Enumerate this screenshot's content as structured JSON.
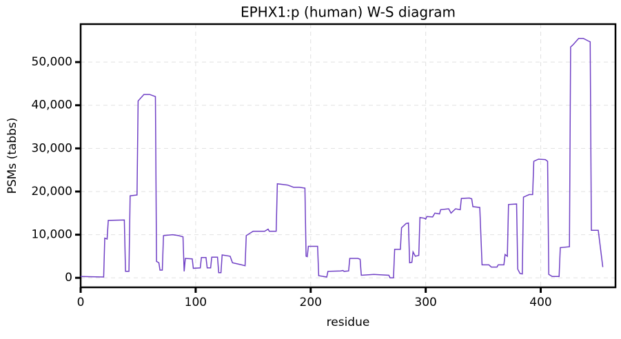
{
  "chart_data": {
    "type": "line",
    "title": "EPHX1:p (human) W-S diagram",
    "xlabel": "residue",
    "ylabel": "PSMs (tabbs)",
    "xlim": [
      0,
      465
    ],
    "ylim": [
      -2200,
      58800
    ],
    "xticks": [
      0,
      100,
      200,
      300,
      400
    ],
    "yticks": [
      0,
      {
        "value": 10000,
        "label": "10,000"
      },
      {
        "value": 20000,
        "label": "20,000"
      },
      {
        "value": 30000,
        "label": "30,000"
      },
      {
        "value": 40000,
        "label": "40,000"
      },
      {
        "value": 50000,
        "label": "50,000"
      }
    ],
    "grid": true,
    "x": [
      0,
      20,
      21,
      23,
      24,
      38,
      39,
      42,
      43,
      49,
      50,
      55,
      60,
      65,
      66,
      68,
      69,
      71,
      72,
      80,
      85,
      89,
      90,
      91,
      97,
      98,
      104,
      105,
      109,
      110,
      113,
      114,
      119,
      120,
      122,
      123,
      130,
      132,
      140,
      143,
      144,
      150,
      160,
      163,
      164,
      170,
      171,
      180,
      185,
      190,
      195,
      196,
      197,
      198,
      206,
      207,
      214,
      215,
      226,
      228,
      229,
      233,
      234,
      241,
      243,
      244,
      255,
      260,
      268,
      269,
      272,
      273,
      278,
      279,
      283,
      285,
      286,
      288,
      289,
      291,
      294,
      295,
      299,
      300,
      301,
      306,
      308,
      312,
      313,
      320,
      322,
      326,
      330,
      331,
      338,
      340,
      341,
      347,
      349,
      355,
      357,
      362,
      363,
      368,
      369,
      371,
      372,
      379,
      380,
      382,
      384,
      385,
      390,
      393,
      394,
      398,
      404,
      406,
      407,
      410,
      416,
      417,
      425,
      426,
      428,
      433,
      437,
      442,
      443,
      444,
      450,
      454
    ],
    "series": [
      {
        "name": "PSMs",
        "color": "#6f3fc5",
        "values": [
          300,
          200,
          9200,
          9000,
          13300,
          13400,
          1500,
          1500,
          19000,
          19200,
          41000,
          42500,
          42500,
          42000,
          3800,
          3500,
          1800,
          1800,
          9800,
          10000,
          9800,
          9500,
          1500,
          4500,
          4400,
          2200,
          2300,
          4700,
          4700,
          2300,
          2300,
          4800,
          4800,
          1200,
          1200,
          5300,
          5000,
          3500,
          3000,
          2800,
          9800,
          10800,
          10800,
          11300,
          10800,
          10800,
          21800,
          21500,
          21000,
          21000,
          20800,
          5000,
          4900,
          7300,
          7300,
          500,
          200,
          1500,
          1600,
          1700,
          1500,
          1600,
          4500,
          4500,
          4300,
          600,
          800,
          700,
          600,
          0,
          0,
          6600,
          6600,
          11600,
          12600,
          12700,
          3500,
          3600,
          6000,
          5000,
          5200,
          14000,
          13800,
          13600,
          14200,
          14100,
          15000,
          14800,
          15800,
          16000,
          15000,
          16000,
          15800,
          18400,
          18500,
          18300,
          16500,
          16300,
          3000,
          3000,
          2500,
          2500,
          3000,
          3000,
          5400,
          5000,
          17000,
          17100,
          2000,
          1000,
          900,
          18700,
          19300,
          19300,
          27000,
          27500,
          27400,
          27000,
          800,
          300,
          300,
          7000,
          7200,
          53500,
          54000,
          55500,
          55500,
          54800,
          54700,
          11000,
          11000,
          2500
        ]
      }
    ]
  }
}
